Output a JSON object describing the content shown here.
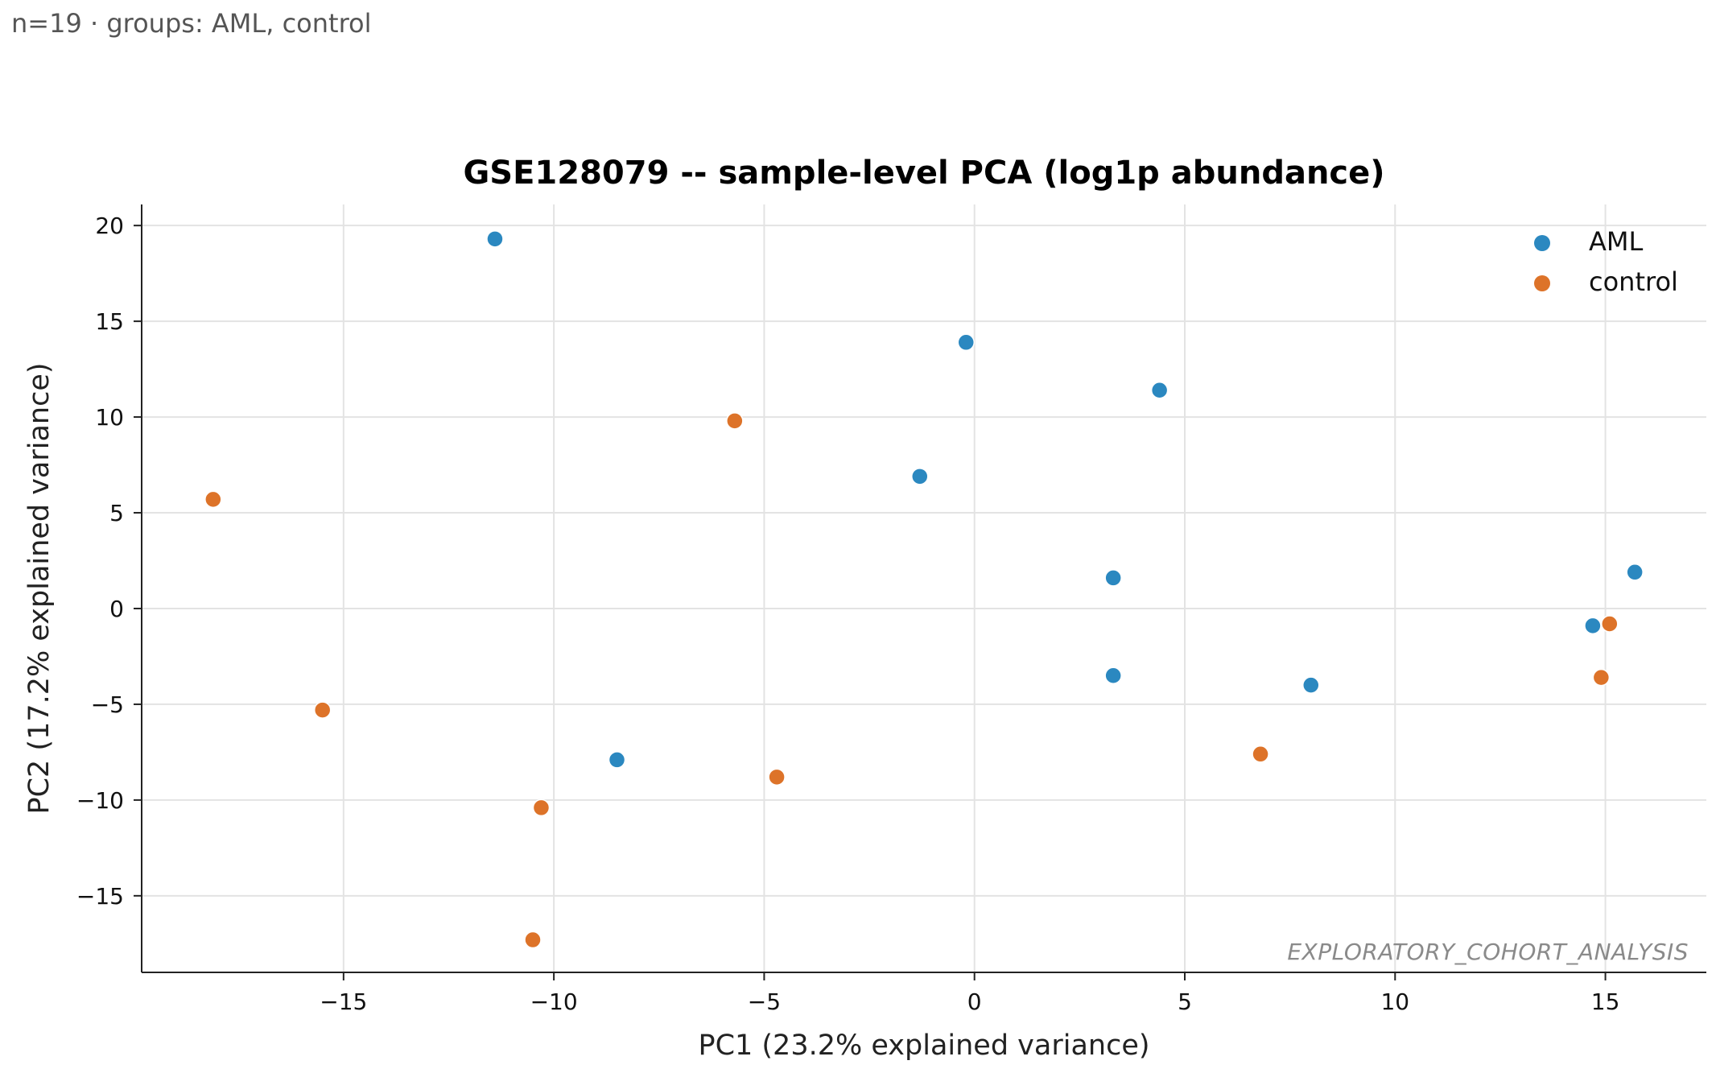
{
  "subtitle": "n=19 · groups: AML, control",
  "watermark": "EXPLORATORY_COHORT_ANALYSIS",
  "colors": {
    "AML": "#2b88c0",
    "control": "#dd7329"
  },
  "chart_data": {
    "type": "scatter",
    "title": "GSE128079 -- sample-level PCA (log1p abundance)",
    "xlabel": "PC1 (23.2% explained variance)",
    "ylabel": "PC2 (17.2% explained variance)",
    "xlim": [
      -19.8,
      17.4
    ],
    "ylim": [
      -19.0,
      21.1
    ],
    "xticks": [
      -15,
      -10,
      -5,
      0,
      5,
      10,
      15
    ],
    "yticks": [
      -15,
      -10,
      -5,
      0,
      5,
      10,
      15,
      20
    ],
    "grid": true,
    "legend_position": "top-right",
    "series": [
      {
        "name": "AML",
        "points": [
          {
            "x": -11.4,
            "y": 19.3
          },
          {
            "x": -0.2,
            "y": 13.9
          },
          {
            "x": 4.4,
            "y": 11.4
          },
          {
            "x": -1.3,
            "y": 6.9
          },
          {
            "x": 3.3,
            "y": 1.6
          },
          {
            "x": 3.3,
            "y": -3.5
          },
          {
            "x": 8.0,
            "y": -4.0
          },
          {
            "x": -8.5,
            "y": -7.9
          },
          {
            "x": 14.7,
            "y": -0.9
          },
          {
            "x": 15.7,
            "y": 1.9
          }
        ]
      },
      {
        "name": "control",
        "points": [
          {
            "x": -5.7,
            "y": 9.8
          },
          {
            "x": -18.1,
            "y": 5.7
          },
          {
            "x": -15.5,
            "y": -5.3
          },
          {
            "x": -10.3,
            "y": -10.4
          },
          {
            "x": -10.5,
            "y": -17.3
          },
          {
            "x": -4.7,
            "y": -8.8
          },
          {
            "x": 6.8,
            "y": -7.6
          },
          {
            "x": 14.9,
            "y": -3.6
          },
          {
            "x": 15.1,
            "y": -0.8
          }
        ]
      }
    ]
  }
}
